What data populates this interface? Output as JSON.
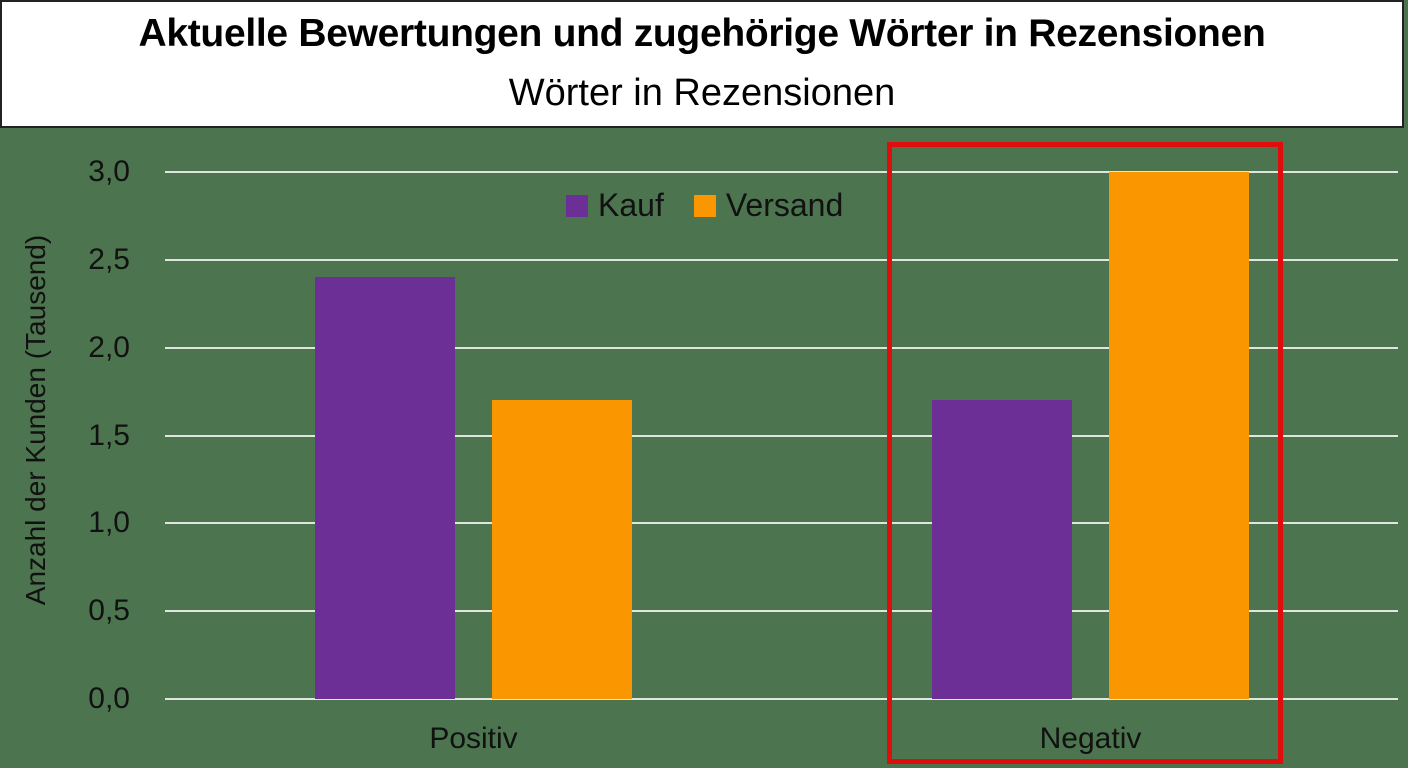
{
  "header": {
    "title": "Aktuelle Bewertungen und zugehörige Wörter in Rezensionen",
    "subtitle": "Wörter in Rezensionen"
  },
  "colors": {
    "background": "#4c754f",
    "kauf": "#6b2f96",
    "versand": "#fa9600",
    "highlight": "#e00d0d",
    "gridline": "#dfe6df"
  },
  "axis": {
    "ylabel": "Anzahl der Kunden (Tausend)",
    "yticks": [
      "0,0",
      "0,5",
      "1,0",
      "1,5",
      "2,0",
      "2,5",
      "3,0"
    ],
    "xticks": [
      "Positiv",
      "Negativ"
    ]
  },
  "legend": {
    "items": [
      {
        "label": "Kauf",
        "color": "#6b2f96"
      },
      {
        "label": "Versand",
        "color": "#fa9600"
      }
    ]
  },
  "chart_data": {
    "type": "bar",
    "title": "Aktuelle Bewertungen und zugehörige Wörter in Rezensionen",
    "subtitle": "Wörter in Rezensionen",
    "xlabel": "",
    "ylabel": "Anzahl der Kunden (Tausend)",
    "categories": [
      "Positiv",
      "Negativ"
    ],
    "series": [
      {
        "name": "Kauf",
        "color": "#6b2f96",
        "values": [
          2.4,
          1.7
        ]
      },
      {
        "name": "Versand",
        "color": "#fa9600",
        "values": [
          1.7,
          3.0
        ]
      }
    ],
    "ylim": [
      0,
      3.0
    ],
    "yticks": [
      0,
      0.5,
      1.0,
      1.5,
      2.0,
      2.5,
      3.0
    ],
    "grid": true,
    "legend_position": "top-center",
    "annotations": [
      {
        "type": "highlight-box",
        "target": "Negativ",
        "color": "#e00d0d"
      }
    ]
  }
}
